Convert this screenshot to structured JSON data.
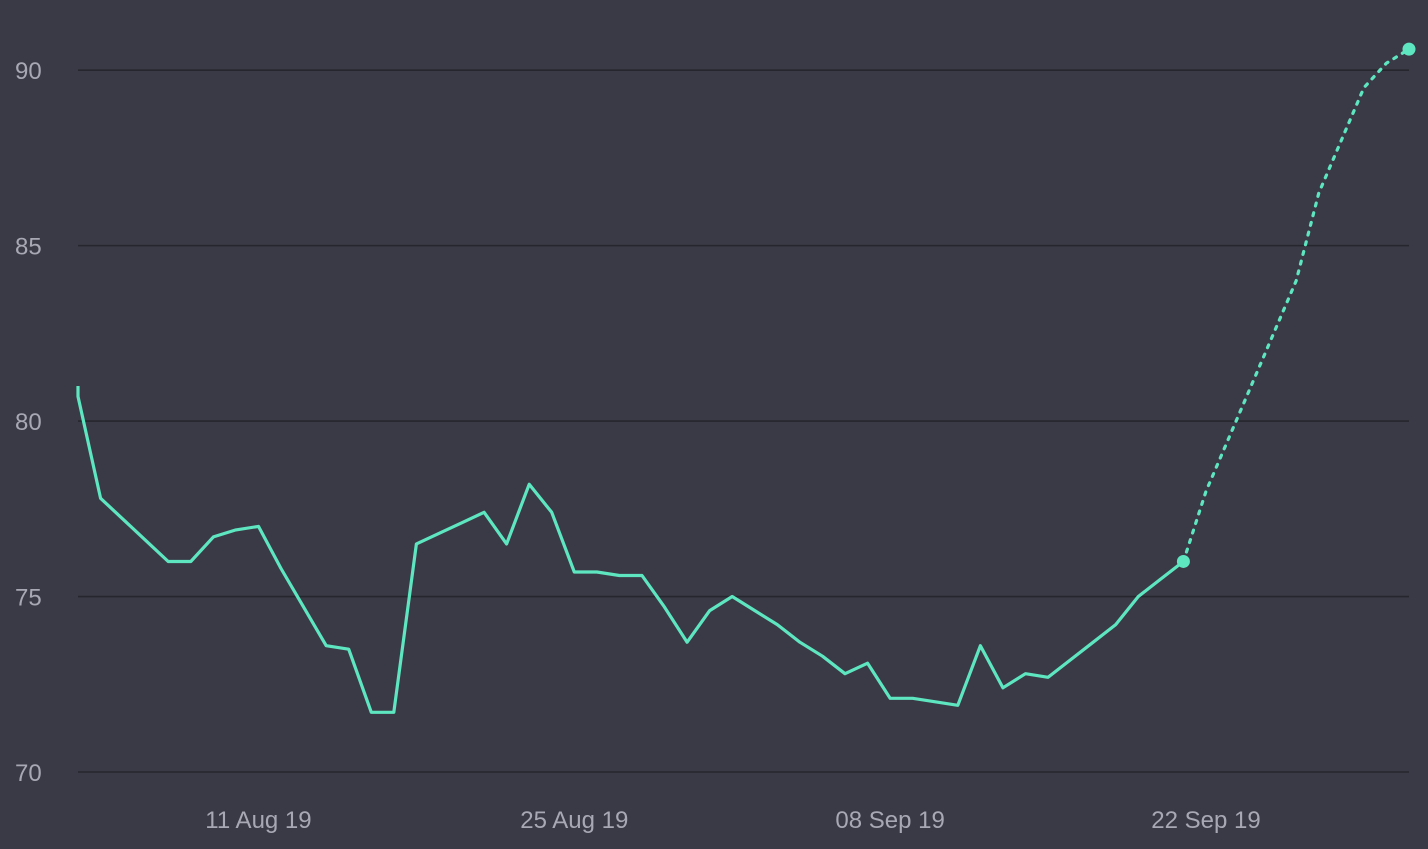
{
  "chart_data": {
    "type": "line",
    "title": "",
    "xlabel": "",
    "ylabel": "",
    "xlim": [
      "2019-08-03",
      "2019-10-01"
    ],
    "ylim": [
      70,
      92
    ],
    "grid": true,
    "y_ticks": [
      {
        "value": 70,
        "label": "70"
      },
      {
        "value": 75,
        "label": "75"
      },
      {
        "value": 80,
        "label": "80"
      },
      {
        "value": 85,
        "label": "85"
      },
      {
        "value": 90,
        "label": "90"
      }
    ],
    "x_ticks": [
      {
        "value": "2019-08-11",
        "label": "11 Aug 19"
      },
      {
        "value": "2019-08-25",
        "label": "25 Aug 19"
      },
      {
        "value": "2019-09-08",
        "label": "08 Sep 19"
      },
      {
        "value": "2019-09-22",
        "label": "22 Sep 19"
      }
    ],
    "series": [
      {
        "style": "solid",
        "color": "#5ee6c0",
        "end_marker": true,
        "points": [
          [
            "2019-08-03",
            81.0
          ],
          [
            "2019-08-03",
            80.7
          ],
          [
            "2019-08-04",
            77.8
          ],
          [
            "2019-08-05",
            77.2
          ],
          [
            "2019-08-06",
            76.6
          ],
          [
            "2019-08-07",
            76.0
          ],
          [
            "2019-08-08",
            76.0
          ],
          [
            "2019-08-09",
            76.7
          ],
          [
            "2019-08-10",
            76.9
          ],
          [
            "2019-08-11",
            77.0
          ],
          [
            "2019-08-12",
            75.8
          ],
          [
            "2019-08-13",
            74.7
          ],
          [
            "2019-08-14",
            73.6
          ],
          [
            "2019-08-15",
            73.5
          ],
          [
            "2019-08-16",
            71.7
          ],
          [
            "2019-08-17",
            71.7
          ],
          [
            "2019-08-18",
            76.5
          ],
          [
            "2019-08-19",
            76.8
          ],
          [
            "2019-08-20",
            77.1
          ],
          [
            "2019-08-21",
            77.4
          ],
          [
            "2019-08-22",
            76.5
          ],
          [
            "2019-08-23",
            78.2
          ],
          [
            "2019-08-24",
            77.4
          ],
          [
            "2019-08-25",
            75.7
          ],
          [
            "2019-08-26",
            75.7
          ],
          [
            "2019-08-27",
            75.6
          ],
          [
            "2019-08-28",
            75.6
          ],
          [
            "2019-08-29",
            74.7
          ],
          [
            "2019-08-30",
            73.7
          ],
          [
            "2019-08-31",
            74.6
          ],
          [
            "2019-09-01",
            75.0
          ],
          [
            "2019-09-02",
            74.6
          ],
          [
            "2019-09-03",
            74.2
          ],
          [
            "2019-09-04",
            73.7
          ],
          [
            "2019-09-05",
            73.3
          ],
          [
            "2019-09-06",
            72.8
          ],
          [
            "2019-09-07",
            73.1
          ],
          [
            "2019-09-08",
            72.1
          ],
          [
            "2019-09-09",
            72.1
          ],
          [
            "2019-09-10",
            72.0
          ],
          [
            "2019-09-11",
            71.9
          ],
          [
            "2019-09-12",
            73.6
          ],
          [
            "2019-09-13",
            72.4
          ],
          [
            "2019-09-14",
            72.8
          ],
          [
            "2019-09-15",
            72.7
          ],
          [
            "2019-09-16",
            73.2
          ],
          [
            "2019-09-17",
            73.7
          ],
          [
            "2019-09-18",
            74.2
          ],
          [
            "2019-09-19",
            75.0
          ],
          [
            "2019-09-20",
            75.5
          ],
          [
            "2019-09-21",
            76.0
          ]
        ]
      },
      {
        "style": "dotted",
        "color": "#5ee6c0",
        "end_marker": true,
        "points": [
          [
            "2019-09-21",
            76.0
          ],
          [
            "2019-09-22",
            78.0
          ],
          [
            "2019-09-24",
            81.0
          ],
          [
            "2019-09-26",
            84.0
          ],
          [
            "2019-09-27",
            86.5
          ],
          [
            "2019-09-28",
            88.0
          ],
          [
            "2019-09-29",
            89.5
          ],
          [
            "2019-09-30",
            90.2
          ],
          [
            "2019-10-01",
            90.6
          ]
        ]
      }
    ]
  }
}
